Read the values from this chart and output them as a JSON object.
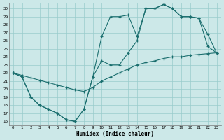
{
  "xlabel": "Humidex (Indice chaleur)",
  "bg_color": "#cce8e8",
  "grid_color": "#99cccc",
  "line_color": "#1a6e6e",
  "xlim": [
    -0.5,
    23.5
  ],
  "ylim": [
    15.5,
    30.7
  ],
  "xticks": [
    0,
    1,
    2,
    3,
    4,
    5,
    6,
    7,
    8,
    9,
    10,
    11,
    12,
    13,
    14,
    15,
    16,
    17,
    18,
    19,
    20,
    21,
    22,
    23
  ],
  "yticks": [
    16,
    17,
    18,
    19,
    20,
    21,
    22,
    23,
    24,
    25,
    26,
    27,
    28,
    29,
    30
  ],
  "line1_x": [
    0,
    1,
    2,
    3,
    4,
    5,
    6,
    7,
    8,
    9,
    10,
    11,
    12,
    13,
    14,
    15,
    16,
    17,
    18,
    19,
    20,
    21,
    22,
    23
  ],
  "line1_y": [
    22,
    21.5,
    19,
    18,
    17.5,
    17,
    16.2,
    16,
    17.5,
    21.5,
    26.5,
    29,
    29,
    29.2,
    26.5,
    30,
    30,
    30.5,
    30,
    29,
    29,
    28.8,
    26.8,
    24.5
  ],
  "line2_x": [
    0,
    1,
    2,
    3,
    4,
    5,
    6,
    7,
    8,
    9,
    10,
    11,
    12,
    13,
    14,
    15,
    16,
    17,
    18,
    19,
    20,
    21,
    22,
    23
  ],
  "line2_y": [
    22,
    21.5,
    19,
    18,
    17.5,
    17,
    16.2,
    16,
    17.5,
    21.5,
    23.5,
    23,
    23,
    24.5,
    26,
    30,
    30,
    30.5,
    30,
    29,
    29,
    28.8,
    25.3,
    24.5
  ],
  "line3_x": [
    0,
    1,
    2,
    3,
    4,
    5,
    6,
    7,
    8,
    9,
    10,
    11,
    12,
    13,
    14,
    15,
    16,
    17,
    18,
    19,
    20,
    21,
    22,
    23
  ],
  "line3_y": [
    22,
    21.7,
    21.4,
    21.1,
    20.8,
    20.5,
    20.2,
    19.9,
    19.7,
    20.2,
    21,
    21.5,
    22,
    22.5,
    23,
    23.3,
    23.5,
    23.8,
    24,
    24,
    24.2,
    24.3,
    24.4,
    24.5
  ]
}
